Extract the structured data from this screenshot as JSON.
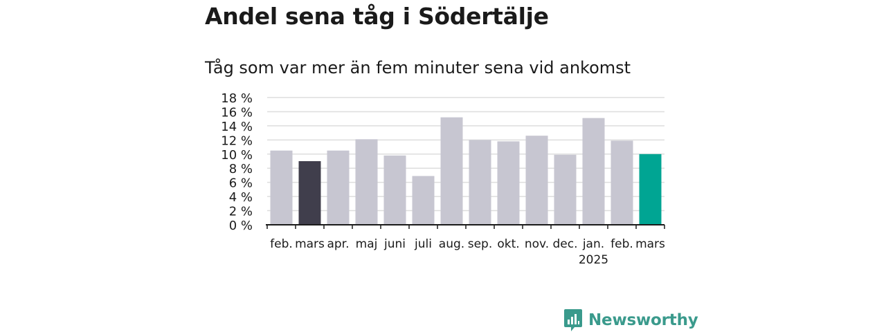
{
  "header": {
    "title": "Andel sena tåg i Södertälje"
  },
  "chart_data": {
    "type": "bar",
    "title": "",
    "subtitle": "Tåg som var mer än fem minuter sena vid ankomst",
    "xlabel": "",
    "ylabel": "",
    "ylim": [
      0,
      18
    ],
    "yticks": [
      "0 %",
      "2 %",
      "4 %",
      "6 %",
      "8 %",
      "10 %",
      "12 %",
      "14 %",
      "16 %",
      "18 %"
    ],
    "ytick_values": [
      0,
      2,
      4,
      6,
      8,
      10,
      12,
      14,
      16,
      18
    ],
    "categories": [
      "feb.",
      "mars",
      "apr.",
      "maj",
      "juni",
      "juli",
      "aug.",
      "sep.",
      "okt.",
      "nov.",
      "dec.",
      "jan.",
      "feb.",
      "mars"
    ],
    "year_label": "2025",
    "year_label_under_index": 11,
    "values": [
      10.5,
      9.0,
      10.5,
      12.1,
      9.8,
      6.9,
      15.2,
      12.0,
      11.8,
      12.6,
      9.9,
      15.1,
      11.9,
      10.0
    ],
    "bar_colors": [
      "#c7c6d1",
      "#403e4c",
      "#c7c6d1",
      "#c7c6d1",
      "#c7c6d1",
      "#c7c6d1",
      "#c7c6d1",
      "#c7c6d1",
      "#c7c6d1",
      "#c7c6d1",
      "#c7c6d1",
      "#c7c6d1",
      "#c7c6d1",
      "#00a593"
    ],
    "grid": true,
    "legend": "none"
  },
  "brand": {
    "name": "Newsworthy",
    "icon": "newsworthy-logo-icon",
    "color": "#3a9a8c"
  }
}
